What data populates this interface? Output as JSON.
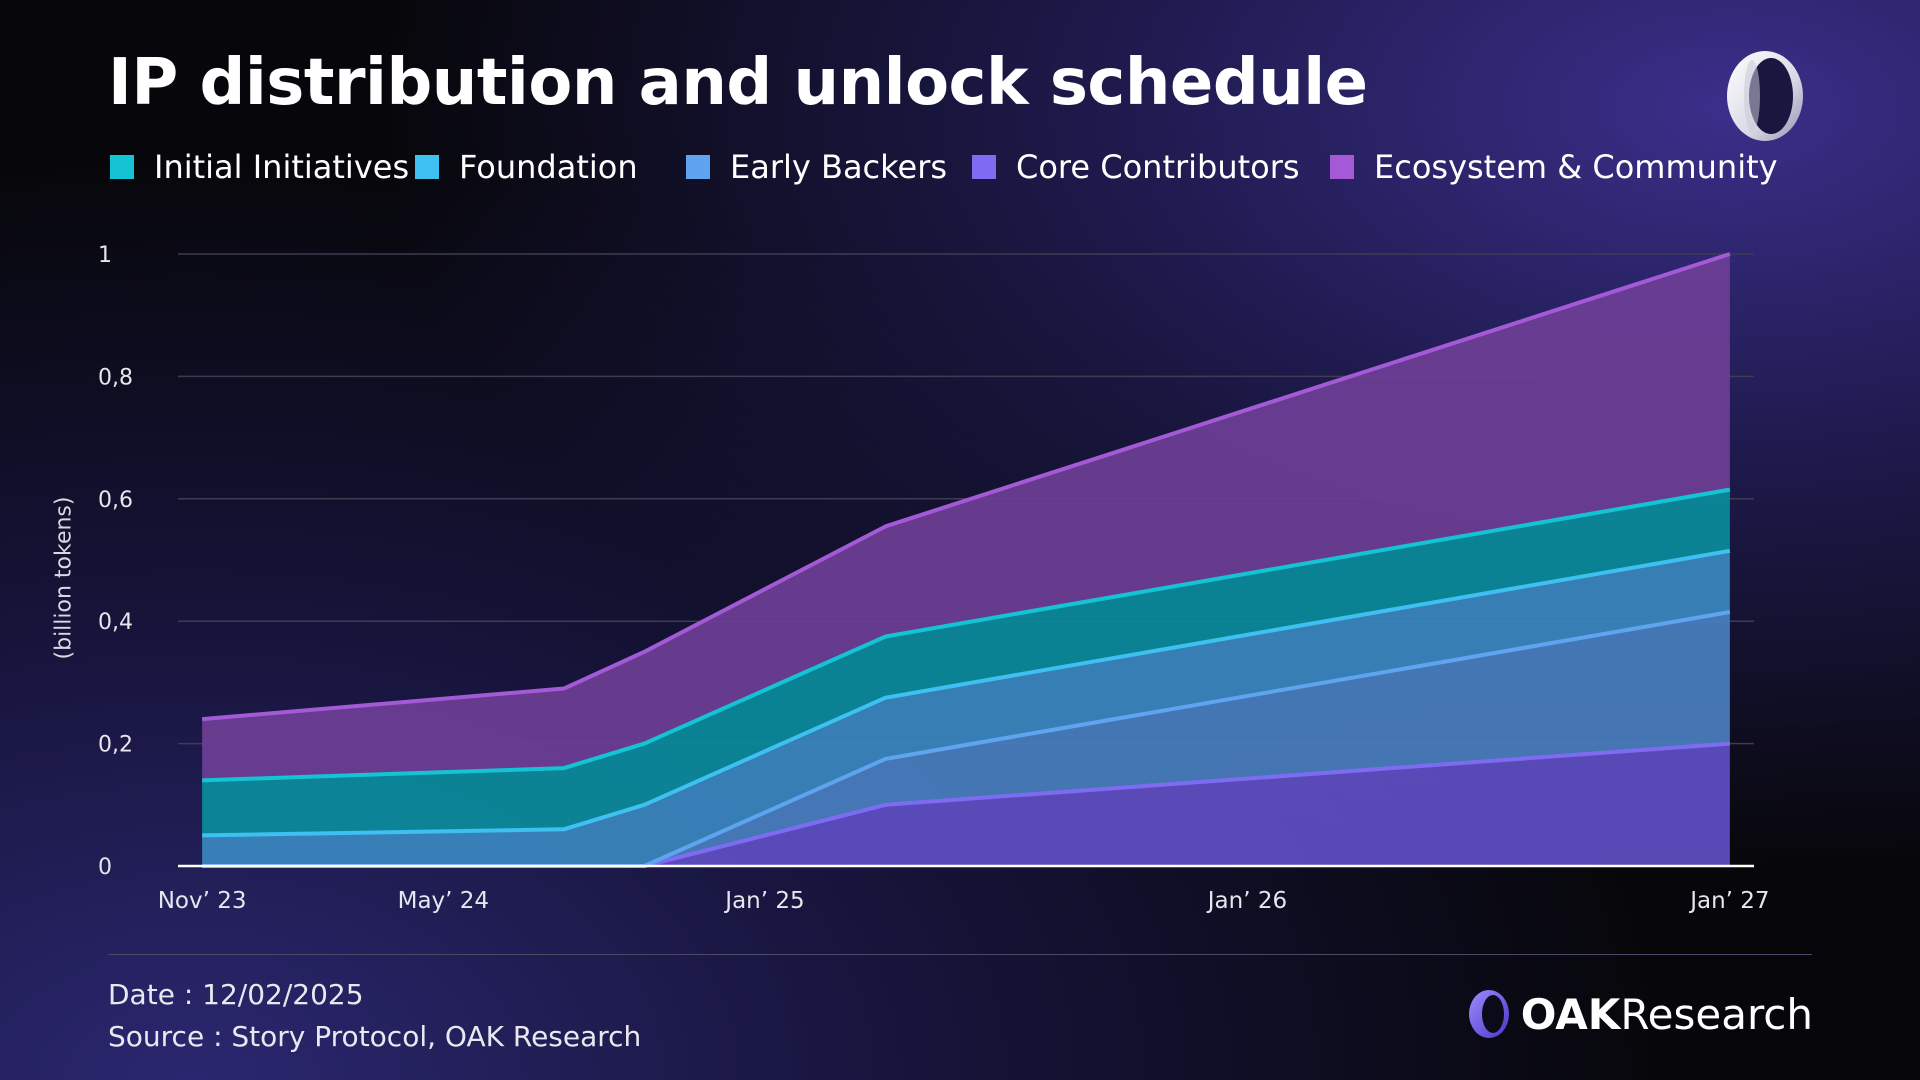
{
  "title": "IP distribution and unlock schedule",
  "legend": [
    {
      "label": "Initial Initiatives",
      "color": "#14c4d4"
    },
    {
      "label": "Foundation",
      "color": "#3ec0f0"
    },
    {
      "label": "Early Backers",
      "color": "#5ea4ee"
    },
    {
      "label": "Core Contributors",
      "color": "#7d6cf2"
    },
    {
      "label": "Ecosystem & Community",
      "color": "#a45ad6"
    }
  ],
  "footer": {
    "date": "Date : 12/02/2025",
    "source": "Source : Story Protocol, OAK Research"
  },
  "brand": {
    "name_bold": "OAK",
    "name_regular": "Research",
    "icon": "oak-logo-icon"
  },
  "chart_data": {
    "type": "area",
    "stacked": true,
    "title": "IP distribution and unlock schedule",
    "xlabel": "",
    "ylabel": "(billion tokens)",
    "ylim": [
      0,
      1
    ],
    "grid": true,
    "legend_position": "top",
    "y_ticks": [
      0,
      0.2,
      0.4,
      0.6,
      0.8,
      1
    ],
    "y_tick_labels": [
      "0",
      "0,2",
      "0,4",
      "0,6",
      "0,8",
      "1"
    ],
    "x_ticks": [
      0,
      6,
      14,
      26,
      38
    ],
    "x_tick_labels": [
      "Nov’ 23",
      "May’ 24",
      "Jan’ 25",
      "Jan’ 26",
      "Jan’ 27"
    ],
    "x_range": [
      -0.6,
      38.6
    ],
    "x": [
      0,
      9,
      11,
      17,
      38
    ],
    "x_unit": "months since Nov 2023",
    "series": [
      {
        "name": "Core Contributors",
        "color": "#5f4fc4",
        "line_color": "#7d6cf2",
        "values": [
          0,
          0,
          0,
          0.1,
          0.2
        ]
      },
      {
        "name": "Early Backers",
        "color": "#4a7fc0",
        "line_color": "#5ea4ee",
        "values": [
          0,
          0,
          0,
          0.075,
          0.215
        ]
      },
      {
        "name": "Foundation",
        "color": "#3a88bf",
        "line_color": "#3ec0f0",
        "values": [
          0.05,
          0.06,
          0.1,
          0.1,
          0.1
        ]
      },
      {
        "name": "Initial Initiatives",
        "color": "#0b8c9c",
        "line_color": "#14c4d4",
        "values": [
          0.09,
          0.1,
          0.1,
          0.1,
          0.1
        ]
      },
      {
        "name": "Ecosystem & Community",
        "color": "#6e3f96",
        "line_color": "#a45ad6",
        "values": [
          0.1,
          0.13,
          0.15,
          0.18,
          0.385
        ]
      }
    ]
  }
}
